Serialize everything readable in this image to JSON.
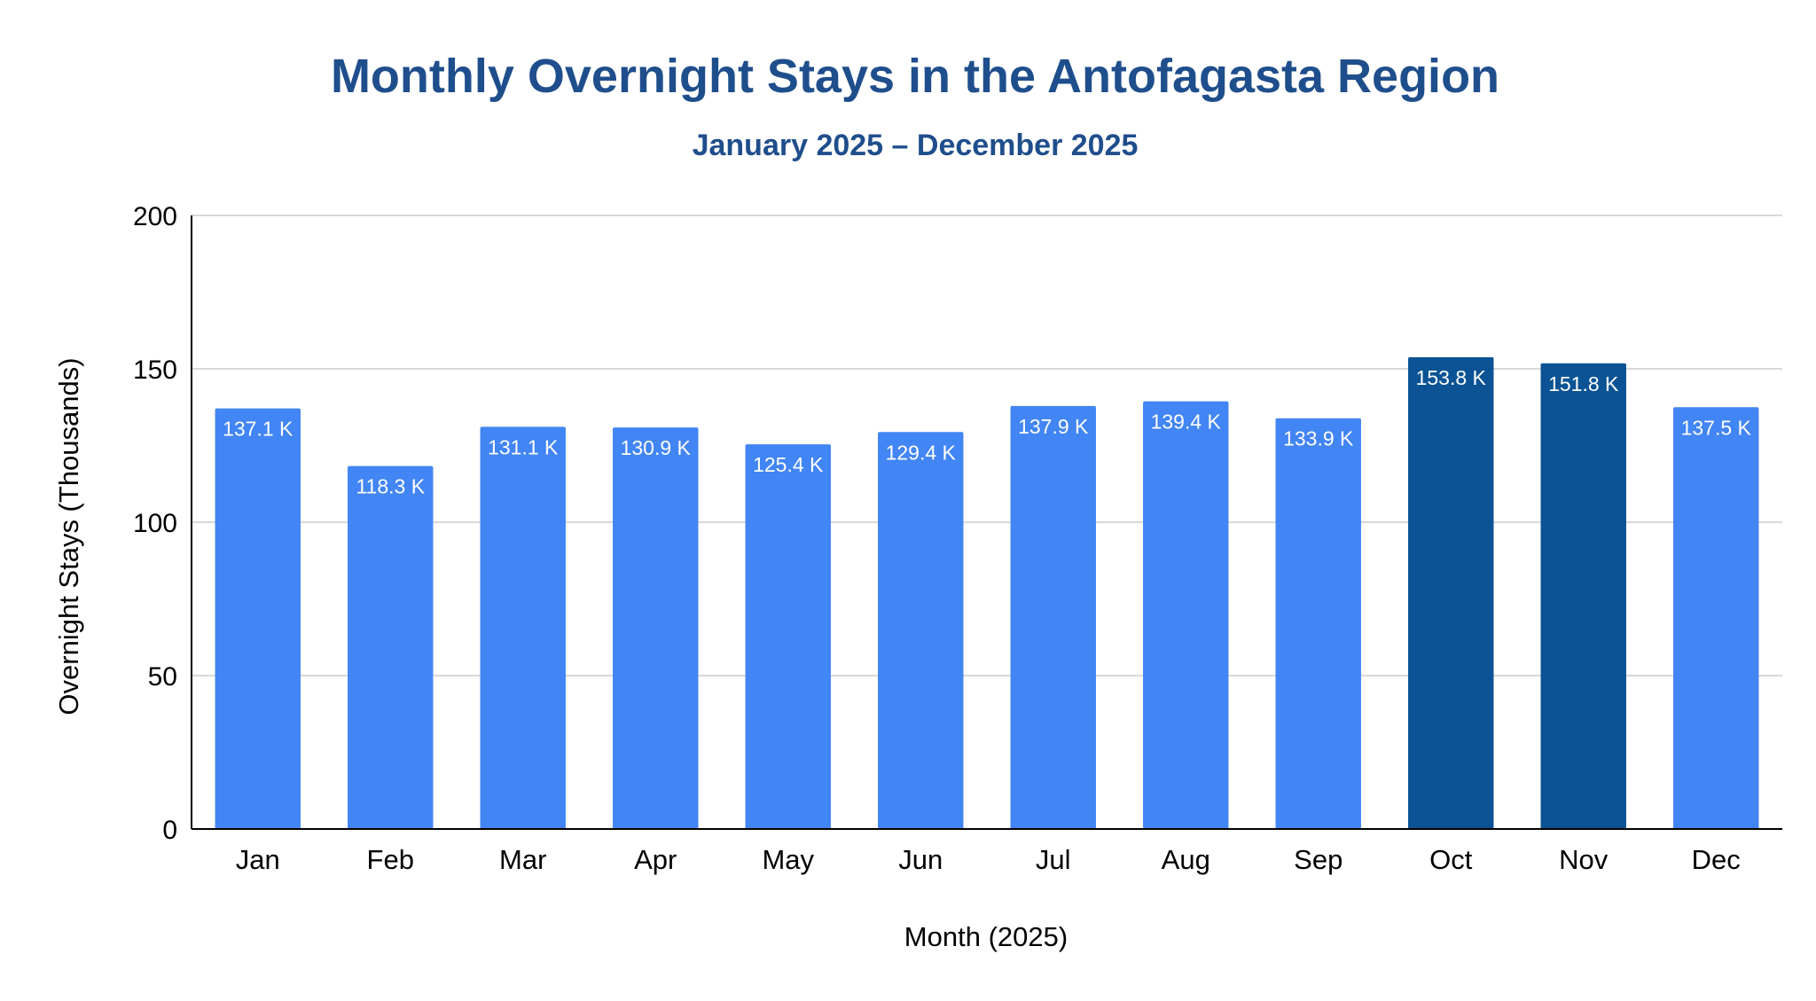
{
  "chart_data": {
    "type": "bar",
    "title": "Monthly Overnight Stays in the Antofagasta Region",
    "subtitle": "January 2025 – December 2025",
    "xlabel": "Month (2025)",
    "ylabel": "Overnight Stays (Thousands)",
    "ylim": [
      0,
      200
    ],
    "yticks": [
      "0",
      "50",
      "100",
      "150",
      "200"
    ],
    "grid": true,
    "legend": "none",
    "categories": [
      "Jan",
      "Feb",
      "Mar",
      "Apr",
      "May",
      "Jun",
      "Jul",
      "Aug",
      "Sep",
      "Oct",
      "Nov",
      "Dec"
    ],
    "values": [
      137.1,
      118.3,
      131.1,
      130.9,
      125.4,
      129.4,
      137.9,
      139.4,
      133.9,
      153.8,
      151.8,
      137.5
    ],
    "data_labels": [
      "137.1 K",
      "118.3 K",
      "131.1 K",
      "130.9 K",
      "125.4 K",
      "129.4 K",
      "137.9 K",
      "139.4 K",
      "133.9 K",
      "153.8 K",
      "151.8 K",
      "137.5 K"
    ],
    "highlighted": [
      "Oct",
      "Nov"
    ],
    "colors": {
      "bar": "#4285f4",
      "bar_highlight": "#0b5394",
      "title": "#1f4e8c",
      "grid": "#cccccc",
      "axis": "#000000",
      "text": "#000000",
      "data_label": "#ffffff"
    }
  }
}
